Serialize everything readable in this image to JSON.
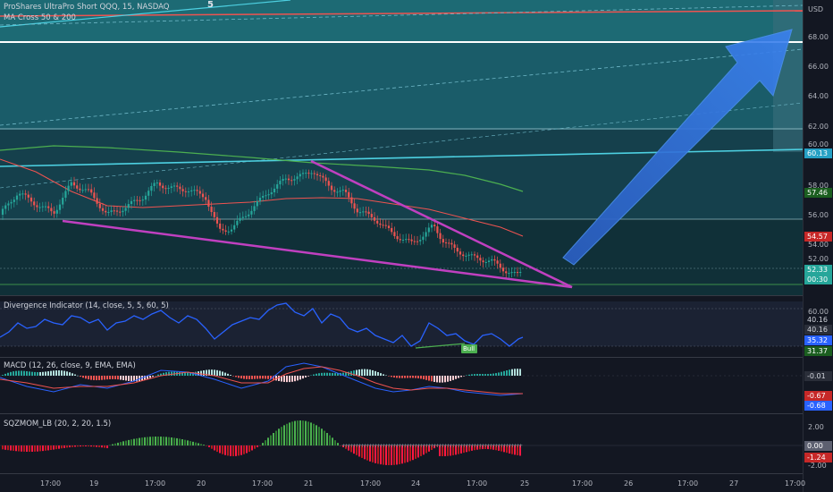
{
  "main": {
    "title": "ProShares UltraPro Short QQQ, 15, NASDAQ",
    "study": "MA Cross 50 & 200",
    "wave_label": "5",
    "currency": "USD",
    "ticks": [
      "68.00",
      "66.00",
      "64.00",
      "62.00",
      "60.00",
      "58.00",
      "56.00",
      "54.00",
      "52.00"
    ],
    "tags": {
      "level_a": "60.13",
      "ma50": "57.46",
      "ma200": "54.57",
      "price": "52.33",
      "countdown": "00:30"
    }
  },
  "divergence": {
    "title": "Divergence Indicator (14, close, 5, 5, 60, 5)",
    "ticks": [
      "60.00",
      "40.16"
    ],
    "tags": {
      "a": "40.16",
      "b": "35.32",
      "c": "31.37"
    },
    "bull_label": "Bull"
  },
  "macd": {
    "title": "MACD (12, 26, close, 9, EMA, EMA)",
    "tags": {
      "a": "-0.01",
      "b": "-0.67",
      "c": "-0.68"
    }
  },
  "sqzmom": {
    "title": "SQZMOM_LB (20, 2, 20, 1.5)",
    "ticks": [
      "2.00",
      "-2.00"
    ],
    "tags": {
      "a": "0.00",
      "b": "-1.24"
    }
  },
  "time_axis": [
    "17:00",
    "19",
    "17:00",
    "20",
    "17:00",
    "21",
    "17:00",
    "24",
    "17:00",
    "25",
    "17:00",
    "26",
    "17:00",
    "27",
    "17:00"
  ],
  "colors": {
    "up": "#26a69a",
    "down": "#ef5350",
    "wedge": "#c040c0",
    "arrow": "#2a6fd6",
    "rsi": "#2962ff"
  }
}
